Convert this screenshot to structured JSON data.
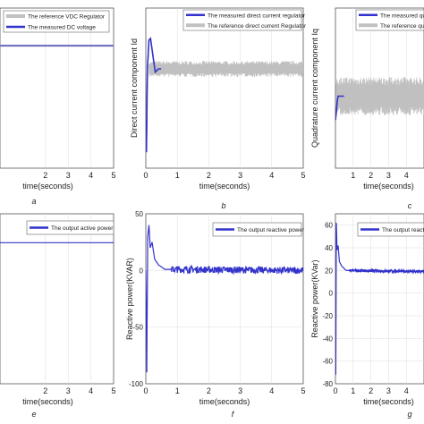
{
  "chart_data": [
    {
      "type": "line",
      "panel_label": "a",
      "xlabel": "time(seconds)",
      "ylabel": "",
      "xlim": [
        0,
        5
      ],
      "xticks": [
        2,
        3,
        4,
        5
      ],
      "ylim": [
        0,
        1
      ],
      "yticks": [],
      "legend": {
        "placement": "top-right"
      },
      "series": [
        {
          "name": "The reference VDC Regulator",
          "color": "#c0c0c0",
          "kind": "flat",
          "points": [
            [
              0,
              0.765
            ],
            [
              5,
              0.765
            ]
          ]
        },
        {
          "name": "The measured DC voltage",
          "color": "#3333cc",
          "kind": "flat",
          "points": [
            [
              0,
              0.765
            ],
            [
              5,
              0.765
            ]
          ]
        }
      ]
    },
    {
      "type": "line",
      "panel_label": "b",
      "xlabel": "time(seconds)",
      "ylabel": "Direct current component Id",
      "xlim": [
        0,
        5
      ],
      "xticks": [
        0,
        1,
        2,
        3,
        4,
        5
      ],
      "ylim": [
        0,
        1
      ],
      "yticks": [],
      "legend": {
        "placement": "top-right"
      },
      "series": [
        {
          "name": "The measured direct current regulator",
          "color": "#3333cc",
          "kind": "transient",
          "points": [
            [
              0,
              0.3
            ],
            [
              0.02,
              0.1
            ],
            [
              0.05,
              0.62
            ],
            [
              0.1,
              0.8
            ],
            [
              0.15,
              0.81
            ],
            [
              0.2,
              0.74
            ],
            [
              0.3,
              0.6
            ],
            [
              0.4,
              0.62
            ],
            [
              5,
              0.62
            ]
          ]
        },
        {
          "name": "The reference direct current Regulator",
          "color": "#c0c0c0",
          "kind": "band",
          "start": 0.1,
          "center": 0.62,
          "amplitude": 0.05
        }
      ]
    },
    {
      "type": "line",
      "panel_label": "c",
      "xlabel": "time(seconds)",
      "ylabel": "Quadrature current component Iq",
      "xlim": [
        0,
        5
      ],
      "xticks": [
        1,
        2,
        3,
        4,
        5
      ],
      "ylim": [
        0,
        1
      ],
      "yticks": [],
      "legend": {
        "placement": "top-right"
      },
      "series": [
        {
          "name": "The measured quadrature",
          "color": "#3333cc",
          "kind": "transient",
          "points": [
            [
              0,
              0.3
            ],
            [
              0.05,
              0.35
            ],
            [
              0.1,
              0.42
            ],
            [
              0.15,
              0.45
            ],
            [
              5,
              0.45
            ]
          ]
        },
        {
          "name": "The reference quadrature",
          "color": "#c0c0c0",
          "kind": "band",
          "start": 0.05,
          "center": 0.45,
          "amplitude": 0.12
        }
      ]
    },
    {
      "type": "line",
      "panel_label": "e",
      "xlabel": "time(seconds)",
      "ylabel": "",
      "xlim": [
        0,
        5
      ],
      "xticks": [
        2,
        3,
        4,
        5
      ],
      "ylim": [
        0,
        1
      ],
      "yticks": [],
      "legend": {
        "placement": "top-right"
      },
      "series": [
        {
          "name": "The output active power",
          "color": "#3333cc",
          "kind": "flat",
          "points": [
            [
              0,
              0.83
            ],
            [
              5,
              0.83
            ]
          ]
        }
      ]
    },
    {
      "type": "line",
      "panel_label": "f",
      "xlabel": "time(seconds)",
      "ylabel": "Reactive power(KVAR)",
      "xlim": [
        0,
        5
      ],
      "xticks": [
        0,
        1,
        2,
        3,
        4,
        5
      ],
      "ylim": [
        -100,
        50
      ],
      "yticks": [
        -100,
        -50,
        0,
        50
      ],
      "legend": {
        "placement": "top-right"
      },
      "series": [
        {
          "name": "The output reactive power",
          "color": "#3333cc",
          "kind": "transient",
          "noise": 3,
          "noise_start": 0.8,
          "points": [
            [
              0,
              0
            ],
            [
              0.03,
              -90
            ],
            [
              0.06,
              30
            ],
            [
              0.1,
              40
            ],
            [
              0.14,
              20
            ],
            [
              0.2,
              25
            ],
            [
              0.28,
              10
            ],
            [
              0.4,
              5
            ],
            [
              0.6,
              1
            ],
            [
              5,
              0
            ]
          ]
        }
      ]
    },
    {
      "type": "line",
      "panel_label": "g",
      "xlabel": "time(seconds)",
      "ylabel": "Reactive power(KVar)",
      "xlim": [
        0,
        5
      ],
      "xticks": [
        0,
        1,
        2,
        3,
        4,
        5
      ],
      "ylim": [
        -80,
        70
      ],
      "yticks": [
        -80,
        -60,
        -40,
        -20,
        0,
        20,
        40,
        60
      ],
      "legend": {
        "placement": "top-right"
      },
      "series": [
        {
          "name": "The output reactive",
          "color": "#3333cc",
          "kind": "transient",
          "noise": 1.2,
          "noise_start": 0.8,
          "points": [
            [
              0,
              0
            ],
            [
              0.02,
              -72
            ],
            [
              0.05,
              62
            ],
            [
              0.09,
              38
            ],
            [
              0.15,
              42
            ],
            [
              0.22,
              28
            ],
            [
              0.35,
              24
            ],
            [
              0.6,
              20
            ],
            [
              5,
              19
            ]
          ]
        }
      ]
    }
  ]
}
